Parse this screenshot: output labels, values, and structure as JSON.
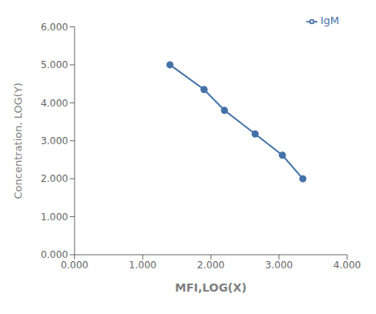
{
  "chart_data": {
    "type": "line",
    "xlabel": "MFI,LOG(X)",
    "ylabel": "Concentration, LOG(Y)",
    "x": [
      1.4,
      1.9,
      2.2,
      2.65,
      3.05,
      3.35
    ],
    "series": [
      {
        "name": "IgM",
        "color": "#4472a8",
        "marker": "circle",
        "values": [
          5.0,
          4.35,
          3.8,
          3.18,
          2.62,
          2.0
        ]
      }
    ],
    "xlim": [
      0.0,
      4.0
    ],
    "ylim": [
      0.0,
      6.0
    ],
    "xticks": [
      {
        "value": 0.0,
        "label": "0.000"
      },
      {
        "value": 1.0,
        "label": "1.000"
      },
      {
        "value": 2.0,
        "label": "2.000"
      },
      {
        "value": 3.0,
        "label": "3.000"
      },
      {
        "value": 4.0,
        "label": "4.000"
      }
    ],
    "yticks": [
      {
        "value": 0.0,
        "label": "0.000"
      },
      {
        "value": 1.0,
        "label": "1.000"
      },
      {
        "value": 2.0,
        "label": "2.000"
      },
      {
        "value": 3.0,
        "label": "3.000"
      },
      {
        "value": 4.0,
        "label": "4.000"
      },
      {
        "value": 5.0,
        "label": "5.000"
      },
      {
        "value": 6.0,
        "label": "6.000"
      }
    ],
    "legend": "upper right",
    "grid": false
  }
}
